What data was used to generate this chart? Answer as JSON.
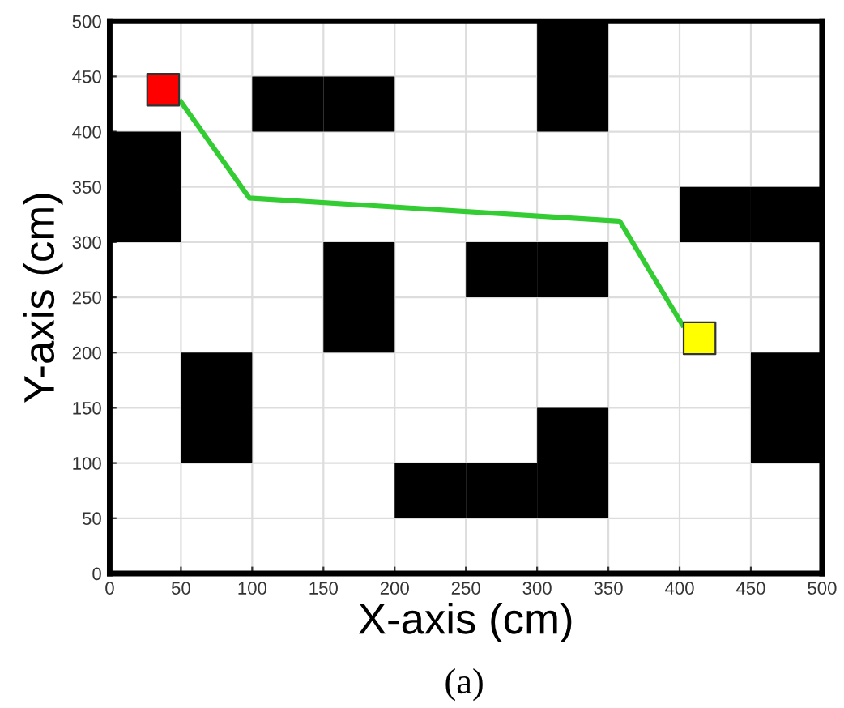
{
  "chart_data": {
    "type": "bar",
    "xlabel": "X-axis (cm)",
    "ylabel": "Y-axis (cm)",
    "annotations": [
      "(a)"
    ],
    "xlim": [
      0,
      500
    ],
    "ylim": [
      0,
      500
    ],
    "xticks": [
      0,
      50,
      100,
      150,
      200,
      250,
      300,
      350,
      400,
      450,
      500
    ],
    "yticks": [
      0,
      50,
      100,
      150,
      200,
      250,
      300,
      350,
      400,
      450,
      500
    ],
    "grid": true,
    "series": [
      {
        "color": "#000000",
        "x": [
          25,
          75,
          125,
          175,
          225,
          275,
          325,
          425,
          475
        ],
        "base": [
          300,
          100,
          400,
          400,
          50,
          250,
          400,
          300,
          300
        ],
        "values": [
          100,
          100,
          50,
          50,
          50,
          50,
          100,
          50,
          50
        ]
      },
      {
        "color": "#000000",
        "x": [
          175,
          275,
          325,
          475
        ],
        "base": [
          200,
          50,
          250,
          100
        ],
        "values": [
          100,
          50,
          50,
          100
        ]
      },
      {
        "color": "#000000",
        "x": [
          325
        ],
        "base": [
          50
        ],
        "values": [
          100
        ]
      },
      {
        "type": "line",
        "color": "#33cc33",
        "x": [
          50,
          98,
          358,
          402
        ],
        "values": [
          427,
          340,
          319,
          225
        ]
      },
      {
        "type": "scatter",
        "marker": "square",
        "color": "#ff0000",
        "x": [
          37.5
        ],
        "values": [
          438
        ]
      },
      {
        "type": "scatter",
        "marker": "square",
        "color": "#ffff00",
        "x": [
          414
        ],
        "values": [
          213
        ]
      }
    ]
  }
}
